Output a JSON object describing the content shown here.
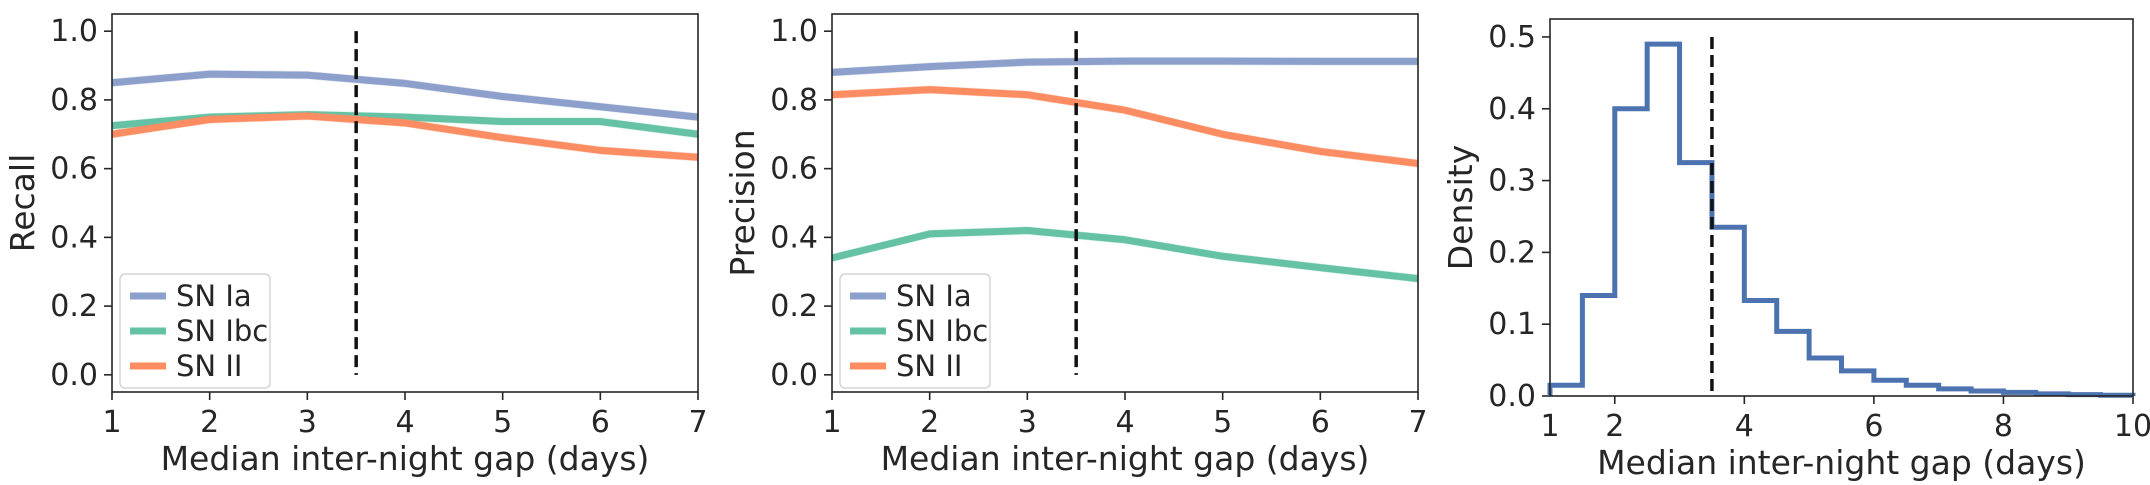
{
  "chart_data": [
    {
      "type": "line",
      "xlabel": "Median inter-night gap (days)",
      "ylabel": "Recall",
      "xlim": [
        1,
        7
      ],
      "ylim": [
        -0.05,
        1.05
      ],
      "xticks": [
        "1",
        "2",
        "3",
        "4",
        "5",
        "6",
        "7"
      ],
      "yticks": [
        "0.0",
        "0.2",
        "0.4",
        "0.6",
        "0.8",
        "1.0"
      ],
      "x": [
        1,
        2,
        3,
        4,
        5,
        6,
        7
      ],
      "series": [
        {
          "name": "SN Ia",
          "color": "#8da0cb",
          "values": [
            0.85,
            0.875,
            0.872,
            0.848,
            0.81,
            0.78,
            0.75
          ]
        },
        {
          "name": "SN Ibc",
          "color": "#66c2a5",
          "values": [
            0.725,
            0.75,
            0.757,
            0.75,
            0.737,
            0.737,
            0.7
          ]
        },
        {
          "name": "SN II",
          "color": "#fc8d62",
          "values": [
            0.7,
            0.743,
            0.753,
            0.733,
            0.69,
            0.653,
            0.633
          ]
        }
      ],
      "vline": 3.5,
      "legend": "lower-left",
      "grid": false
    },
    {
      "type": "line",
      "xlabel": "Median inter-night gap (days)",
      "ylabel": "Precision",
      "xlim": [
        1,
        7
      ],
      "ylim": [
        -0.05,
        1.05
      ],
      "xticks": [
        "1",
        "2",
        "3",
        "4",
        "5",
        "6",
        "7"
      ],
      "yticks": [
        "0.0",
        "0.2",
        "0.4",
        "0.6",
        "0.8",
        "1.0"
      ],
      "x": [
        1,
        2,
        3,
        4,
        5,
        6,
        7
      ],
      "series": [
        {
          "name": "SN Ia",
          "color": "#8da0cb",
          "values": [
            0.88,
            0.897,
            0.91,
            0.913,
            0.913,
            0.912,
            0.912
          ]
        },
        {
          "name": "SN Ibc",
          "color": "#66c2a5",
          "values": [
            0.34,
            0.41,
            0.42,
            0.393,
            0.345,
            0.312,
            0.28
          ]
        },
        {
          "name": "SN II",
          "color": "#fc8d62",
          "values": [
            0.815,
            0.83,
            0.815,
            0.77,
            0.7,
            0.65,
            0.615
          ]
        }
      ],
      "vline": 3.5,
      "legend": "lower-left",
      "grid": false
    },
    {
      "type": "histogram",
      "xlabel": "Median inter-night gap (days)",
      "ylabel": "Density",
      "xlim": [
        1,
        10
      ],
      "ylim": [
        0,
        0.525
      ],
      "xticks": [
        "2",
        "4",
        "6",
        "8",
        "10"
      ],
      "yticks": [
        "0.0",
        "0.1",
        "0.2",
        "0.3",
        "0.4",
        "0.5"
      ],
      "color": "#4c72b0",
      "bin_edges": [
        1,
        1.5,
        2,
        2.5,
        3,
        3.5,
        4,
        4.5,
        5,
        5.5,
        6,
        6.5,
        7,
        7.5,
        8,
        8.5,
        9,
        9.5,
        10
      ],
      "values": [
        0.015,
        0.14,
        0.4,
        0.49,
        0.325,
        0.235,
        0.133,
        0.09,
        0.053,
        0.035,
        0.022,
        0.015,
        0.01,
        0.007,
        0.005,
        0.003,
        0.002,
        0.001
      ],
      "vline": 3.5,
      "grid": false
    }
  ]
}
